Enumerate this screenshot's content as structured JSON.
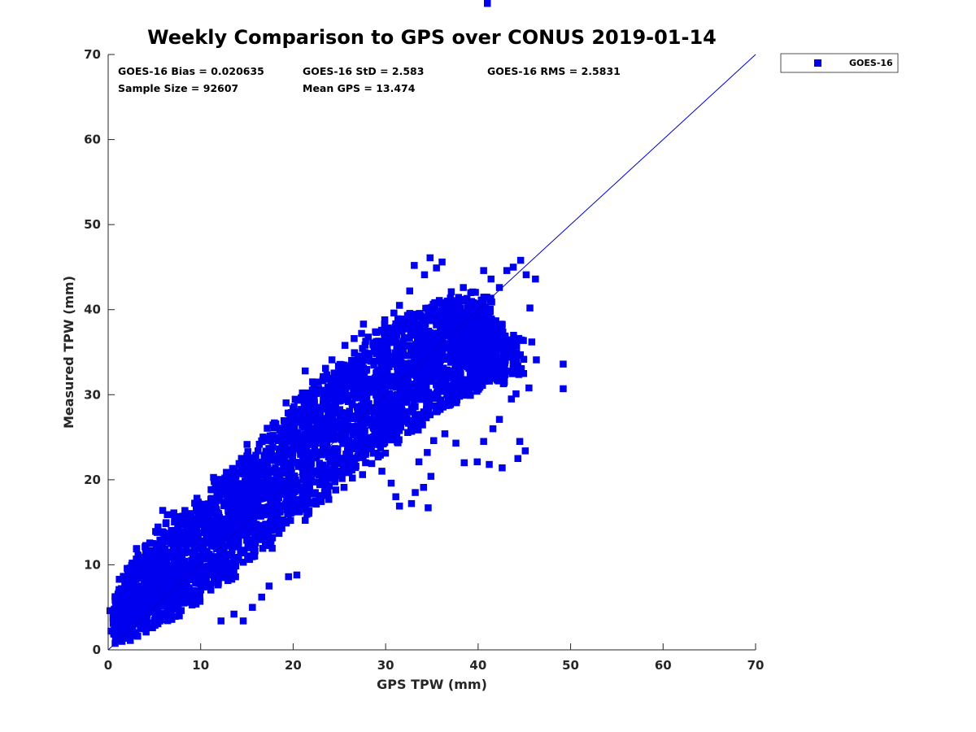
{
  "colors": {
    "series": "#0000ee",
    "axis": "#262626",
    "line": "#0000cc"
  },
  "chart_data": {
    "type": "scatter",
    "title": "Weekly Comparison to GPS over CONUS 2019-01-14",
    "xlabel": "GPS TPW (mm)",
    "ylabel": "Measured TPW (mm)",
    "xlim": [
      0,
      70
    ],
    "ylim": [
      0,
      70
    ],
    "xticks": [
      0,
      10,
      20,
      30,
      40,
      50,
      60,
      70
    ],
    "yticks": [
      0,
      10,
      20,
      30,
      40,
      50,
      60,
      70
    ],
    "grid": false,
    "legend": {
      "position": "outside-top-right",
      "entries": [
        "GOES-16"
      ]
    },
    "reference_line": {
      "x": [
        0,
        70
      ],
      "y": [
        0,
        70
      ]
    },
    "stats": [
      "GOES-16 Bias = 0.020635",
      "GOES-16 StD = 2.583",
      "GOES-16 RMS = 2.5831",
      "Sample Size = 92607",
      "Mean GPS = 13.474"
    ],
    "series": [
      {
        "name": "GOES-16",
        "points": [
          [
            0.2,
            4.6
          ],
          [
            0.6,
            3.5
          ],
          [
            1.2,
            8.3
          ],
          [
            1.8,
            5.2
          ],
          [
            2.6,
            10.2
          ],
          [
            3.5,
            9.8
          ],
          [
            4.1,
            11.4
          ],
          [
            4.8,
            12.5
          ],
          [
            5.3,
            13.8
          ],
          [
            5.9,
            16.4
          ],
          [
            6.4,
            15.9
          ],
          [
            7.1,
            16.1
          ],
          [
            7.8,
            12.5
          ],
          [
            8.5,
            14.2
          ],
          [
            9.6,
            15.1
          ],
          [
            11.2,
            17.8
          ],
          [
            12.1,
            19.6
          ],
          [
            13.5,
            20.5
          ],
          [
            15.0,
            22.8
          ],
          [
            16.2,
            23.4
          ],
          [
            17.2,
            22.9
          ],
          [
            18.4,
            24.6
          ],
          [
            19.2,
            26.0
          ],
          [
            20.1,
            28.6
          ],
          [
            21.0,
            30.2
          ],
          [
            21.3,
            32.8
          ],
          [
            22.1,
            31.5
          ],
          [
            23.5,
            33.1
          ],
          [
            24.2,
            34.1
          ],
          [
            25.6,
            35.8
          ],
          [
            26.6,
            36.6
          ],
          [
            27.4,
            37.2
          ],
          [
            27.6,
            38.3
          ],
          [
            28.9,
            37.4
          ],
          [
            29.9,
            38.8
          ],
          [
            30.9,
            39.6
          ],
          [
            31.5,
            40.5
          ],
          [
            32.6,
            42.2
          ],
          [
            33.1,
            45.2
          ],
          [
            34.2,
            44.1
          ],
          [
            34.8,
            46.1
          ],
          [
            35.5,
            44.9
          ],
          [
            36.1,
            45.6
          ],
          [
            37.1,
            42.1
          ],
          [
            38.4,
            42.6
          ],
          [
            39.2,
            42.0
          ],
          [
            40.1,
            40.1
          ],
          [
            40.6,
            44.6
          ],
          [
            41.4,
            43.6
          ],
          [
            42.3,
            42.6
          ],
          [
            43.1,
            44.6
          ],
          [
            43.8,
            45.0
          ],
          [
            44.6,
            45.8
          ],
          [
            45.2,
            44.1
          ],
          [
            46.2,
            43.6
          ],
          [
            45.6,
            40.2
          ],
          [
            45.8,
            36.2
          ],
          [
            46.3,
            34.1
          ],
          [
            45.5,
            30.8
          ],
          [
            44.1,
            30.1
          ],
          [
            43.6,
            29.5
          ],
          [
            42.3,
            27.1
          ],
          [
            41.6,
            26.0
          ],
          [
            40.6,
            24.5
          ],
          [
            39.9,
            22.1
          ],
          [
            41.2,
            21.8
          ],
          [
            42.6,
            21.4
          ],
          [
            44.3,
            22.5
          ],
          [
            45.1,
            23.4
          ],
          [
            44.5,
            24.5
          ],
          [
            38.5,
            22.0
          ],
          [
            37.6,
            24.3
          ],
          [
            36.4,
            25.4
          ],
          [
            35.2,
            24.6
          ],
          [
            34.5,
            23.2
          ],
          [
            33.6,
            22.1
          ],
          [
            34.9,
            20.4
          ],
          [
            34.1,
            19.1
          ],
          [
            33.2,
            18.5
          ],
          [
            32.8,
            17.2
          ],
          [
            34.6,
            16.7
          ],
          [
            31.1,
            18.0
          ],
          [
            31.5,
            16.9
          ],
          [
            30.6,
            19.6
          ],
          [
            29.6,
            21.0
          ],
          [
            28.5,
            21.9
          ],
          [
            27.5,
            20.6
          ],
          [
            26.4,
            20.2
          ],
          [
            25.5,
            19.1
          ],
          [
            24.6,
            18.8
          ],
          [
            23.4,
            18.5
          ],
          [
            22.4,
            17.5
          ],
          [
            21.5,
            17.3
          ],
          [
            20.6,
            16.8
          ],
          [
            19.4,
            16.1
          ],
          [
            18.1,
            15.4
          ],
          [
            17.6,
            14.2
          ],
          [
            16.5,
            13.0
          ],
          [
            15.4,
            12.0
          ],
          [
            14.3,
            11.4
          ],
          [
            13.3,
            10.2
          ],
          [
            12.4,
            9.4
          ],
          [
            11.5,
            8.2
          ],
          [
            10.2,
            7.4
          ],
          [
            9.2,
            6.2
          ],
          [
            8.2,
            5.5
          ],
          [
            7.5,
            4.8
          ],
          [
            6.5,
            4.1
          ],
          [
            5.6,
            3.4
          ],
          [
            4.8,
            2.6
          ],
          [
            4.1,
            2.1
          ],
          [
            3.2,
            1.6
          ],
          [
            2.4,
            1.1
          ],
          [
            1.5,
            1.0
          ],
          [
            0.8,
            1.4
          ],
          [
            0.3,
            2.2
          ],
          [
            49.2,
            33.6
          ],
          [
            49.2,
            30.7
          ],
          [
            14.6,
            3.4
          ],
          [
            13.6,
            4.2
          ],
          [
            12.2,
            3.4
          ],
          [
            19.5,
            8.6
          ],
          [
            20.4,
            8.8
          ],
          [
            15.6,
            5.0
          ],
          [
            16.6,
            6.2
          ],
          [
            17.4,
            7.5
          ]
        ],
        "core": [
          [
            0.5,
            0.5,
            2.5,
            6.5
          ],
          [
            1.5,
            1.0,
            5.5,
            9.5
          ],
          [
            3.0,
            2.0,
            8.0,
            12.0
          ],
          [
            5.0,
            3.5,
            10.0,
            14.5
          ],
          [
            7.0,
            5.0,
            12.0,
            16.0
          ],
          [
            9.0,
            6.5,
            14.0,
            18.0
          ],
          [
            11.0,
            8.5,
            16.0,
            20.5
          ],
          [
            13.0,
            10.0,
            18.0,
            22.0
          ],
          [
            15.0,
            12.0,
            20.0,
            24.5
          ],
          [
            17.0,
            13.5,
            22.0,
            26.5
          ],
          [
            19.0,
            15.5,
            24.0,
            29.0
          ],
          [
            21.0,
            17.5,
            26.0,
            31.0
          ],
          [
            23.0,
            19.5,
            28.0,
            33.0
          ],
          [
            25.0,
            21.0,
            30.0,
            34.5
          ],
          [
            27.0,
            22.5,
            32.0,
            36.5
          ],
          [
            29.0,
            24.0,
            34.0,
            38.0
          ],
          [
            31.0,
            25.5,
            36.0,
            39.0
          ],
          [
            33.0,
            27.0,
            38.0,
            40.0
          ],
          [
            35.0,
            28.0,
            40.0,
            40.5
          ],
          [
            37.0,
            29.0,
            41.0,
            40.0
          ],
          [
            39.0,
            29.5,
            41.5,
            39.5
          ],
          [
            41.0,
            30.0,
            41.0,
            39.0
          ],
          [
            43.0,
            31.0,
            40.0,
            38.0
          ],
          [
            45.0,
            32.0,
            37.5,
            37.0
          ]
        ]
      }
    ]
  }
}
